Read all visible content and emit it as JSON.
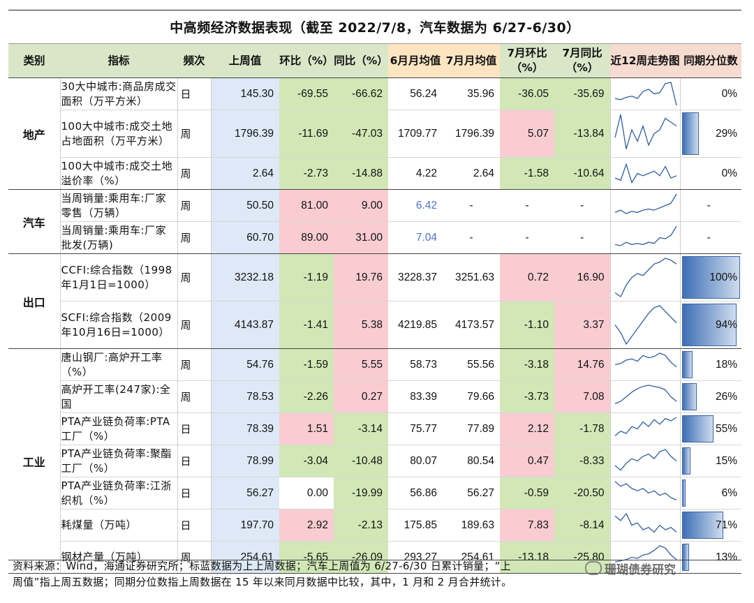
{
  "title": "中高频经济数据表现（截至 2022/7/8，汽车数据为 6/27-6/30）",
  "headers": {
    "category": "类别",
    "indicator": "指标",
    "frequency": "频次",
    "last_week": "上周值",
    "hoh": "环比（%）",
    "yoy": "同比（%）",
    "june_avg": "6月月均值",
    "july_avg": "7月月均值",
    "july_mom": "7月环比（%）",
    "july_yoy": "7月同比（%）",
    "trend": "近12周走势图",
    "percentile": "同期分位数"
  },
  "rows": [
    {
      "cat": "地产",
      "name": "30大中城市:商品房成交面积（万平方米）",
      "freq": "日",
      "last": "145.30",
      "hoh": "-69.55",
      "yoy": "-66.62",
      "june": "56.24",
      "july": "35.96",
      "mom": "-36.05",
      "jyoy": "-35.69",
      "pct": "0%",
      "pct_value": 0,
      "trend": [
        0.3,
        0.25,
        0.35,
        0.4,
        0.3,
        0.6,
        0.7,
        0.5,
        0.55,
        0.95,
        1.0,
        0.0
      ],
      "bg": {
        "hoh": "g",
        "yoy": "g",
        "mom": "g",
        "jyoy": "g"
      }
    },
    {
      "cat": "",
      "name": "100大中城市:成交土地占地面积（万平方米）",
      "freq": "周",
      "last": "1796.39",
      "hoh": "-11.69",
      "yoy": "-47.03",
      "june": "1709.77",
      "july": "1796.39",
      "mom": "5.07",
      "jyoy": "-13.84",
      "pct": "29%",
      "pct_value": 0.29,
      "trend": [
        0.4,
        1.0,
        0.1,
        0.6,
        0.3,
        0.7,
        0.2,
        0.5,
        0.6,
        0.9,
        0.8,
        0.7
      ],
      "bg": {
        "hoh": "g",
        "yoy": "g",
        "mom": "r",
        "jyoy": "g"
      }
    },
    {
      "cat": "",
      "name": "100大中城市:成交土地溢价率（%）",
      "freq": "周",
      "last": "2.64",
      "hoh": "-2.73",
      "yoy": "-14.88",
      "june": "4.22",
      "july": "2.64",
      "mom": "-1.58",
      "jyoy": "-10.64",
      "pct": "0%",
      "pct_value": 0,
      "trend": [
        0.3,
        0.2,
        0.9,
        0.1,
        0.5,
        0.4,
        0.5,
        0.6,
        0.4,
        0.8,
        0.3,
        0.4
      ],
      "bg": {
        "hoh": "g",
        "yoy": "g",
        "mom": "g",
        "jyoy": "g"
      }
    },
    {
      "cat": "汽车",
      "name": "当周销量:乘用车:厂家零售（万辆）",
      "freq": "周",
      "last": "50.50",
      "hoh": "81.00",
      "yoy": "9.00",
      "june": "6.42",
      "july": "-",
      "mom": "-",
      "jyoy": "-",
      "pct": "-",
      "pct_value": null,
      "trend": [
        0.2,
        0.3,
        0.15,
        0.25,
        0.2,
        0.3,
        0.35,
        0.3,
        0.4,
        0.5,
        0.6,
        1.0
      ],
      "june_blue": true,
      "bg": {
        "hoh": "r",
        "yoy": "r",
        "mom": "w",
        "jyoy": "w"
      }
    },
    {
      "cat": "",
      "name": "当周销量:乘用车:厂家批发(万辆)",
      "freq": "周",
      "last": "60.70",
      "hoh": "89.00",
      "yoy": "31.00",
      "june": "7.04",
      "july": "-",
      "mom": "-",
      "jyoy": "-",
      "pct": "-",
      "pct_value": null,
      "trend": [
        0.2,
        0.15,
        0.3,
        0.2,
        0.25,
        0.2,
        0.3,
        0.25,
        0.5,
        0.45,
        0.6,
        1.0
      ],
      "june_blue": true,
      "bg": {
        "hoh": "r",
        "yoy": "r",
        "mom": "w",
        "jyoy": "w"
      }
    },
    {
      "cat": "出口",
      "name": "CCFI:综合指数（1998年1月1日=1000）",
      "freq": "周",
      "last": "3232.18",
      "hoh": "-1.19",
      "yoy": "19.76",
      "june": "3228.37",
      "july": "3251.63",
      "mom": "0.72",
      "jyoy": "16.90",
      "pct": "100%",
      "pct_value": 1.0,
      "trend": [
        0.1,
        0.0,
        0.3,
        0.5,
        0.6,
        0.55,
        0.7,
        0.85,
        0.9,
        1.0,
        0.95,
        0.85
      ],
      "bg": {
        "hoh": "g",
        "yoy": "r",
        "mom": "r",
        "jyoy": "r"
      }
    },
    {
      "cat": "",
      "name": "SCFI:综合指数（2009年10月16日=1000）",
      "freq": "周",
      "last": "4143.87",
      "hoh": "-1.41",
      "yoy": "5.38",
      "june": "4219.85",
      "july": "4173.57",
      "mom": "-1.10",
      "jyoy": "3.37",
      "pct": "94%",
      "pct_value": 0.94,
      "trend": [
        0.5,
        0.3,
        0.0,
        0.2,
        0.4,
        0.6,
        0.8,
        0.95,
        1.0,
        0.85,
        0.7,
        0.55
      ],
      "bg": {
        "hoh": "g",
        "yoy": "r",
        "mom": "g",
        "jyoy": "r"
      }
    },
    {
      "cat": "工业",
      "name": "唐山钢厂:高炉开工率（%）",
      "freq": "周",
      "last": "54.76",
      "hoh": "-1.59",
      "yoy": "5.55",
      "june": "58.73",
      "july": "55.56",
      "mom": "-3.18",
      "jyoy": "14.76",
      "pct": "18%",
      "pct_value": 0.18,
      "trend": [
        0.5,
        0.55,
        0.7,
        0.75,
        0.65,
        0.9,
        0.8,
        0.85,
        1.0,
        0.9,
        0.6,
        0.4
      ],
      "bg": {
        "hoh": "g",
        "yoy": "r",
        "mom": "g",
        "jyoy": "r"
      }
    },
    {
      "cat": "",
      "name": "高炉开工率(247家):全国",
      "freq": "周",
      "last": "78.53",
      "hoh": "-2.26",
      "yoy": "0.27",
      "june": "83.39",
      "july": "79.66",
      "mom": "-3.73",
      "jyoy": "7.08",
      "pct": "26%",
      "pct_value": 0.26,
      "trend": [
        0.2,
        0.3,
        0.5,
        0.7,
        0.85,
        0.95,
        1.0,
        0.95,
        0.9,
        0.8,
        0.5,
        0.3
      ],
      "bg": {
        "hoh": "g",
        "yoy": "r",
        "mom": "g",
        "jyoy": "r"
      }
    },
    {
      "cat": "",
      "name": "PTA产业链负荷率:PTA工厂（%）",
      "freq": "日",
      "last": "78.39",
      "hoh": "1.51",
      "yoy": "-3.14",
      "june": "75.77",
      "july": "77.89",
      "mom": "2.12",
      "jyoy": "-1.78",
      "pct": "55%",
      "pct_value": 0.55,
      "trend": [
        0.2,
        0.4,
        0.3,
        0.6,
        0.5,
        0.8,
        0.6,
        0.9,
        0.7,
        0.95,
        0.85,
        1.0
      ],
      "bg": {
        "hoh": "r",
        "yoy": "g",
        "mom": "r",
        "jyoy": "g"
      }
    },
    {
      "cat": "",
      "name": "PTA产业链负荷率:聚酯工厂（%）",
      "freq": "日",
      "last": "78.99",
      "hoh": "-3.04",
      "yoy": "-10.48",
      "june": "80.07",
      "july": "80.54",
      "mom": "0.47",
      "jyoy": "-8.33",
      "pct": "15%",
      "pct_value": 0.15,
      "trend": [
        0.3,
        0.1,
        0.4,
        0.6,
        0.5,
        0.7,
        0.8,
        0.6,
        0.9,
        1.0,
        0.7,
        0.5
      ],
      "bg": {
        "hoh": "g",
        "yoy": "g",
        "mom": "r",
        "jyoy": "g"
      }
    },
    {
      "cat": "",
      "name": "PTA产业链负荷率:江浙织机（%）",
      "freq": "日",
      "last": "56.27",
      "hoh": "0.00",
      "yoy": "-19.99",
      "june": "56.86",
      "july": "56.27",
      "mom": "-0.59",
      "jyoy": "-20.50",
      "pct": "6%",
      "pct_value": 0.06,
      "trend": [
        1.0,
        0.8,
        0.9,
        0.7,
        0.6,
        0.7,
        0.5,
        0.6,
        0.4,
        0.5,
        0.3,
        0.2
      ],
      "bg": {
        "hoh": "w",
        "yoy": "g",
        "mom": "g",
        "jyoy": "g"
      }
    },
    {
      "cat": "",
      "name": "耗煤量（万吨）",
      "freq": "日",
      "last": "197.70",
      "hoh": "2.92",
      "yoy": "-2.13",
      "june": "175.85",
      "july": "189.63",
      "mom": "7.83",
      "jyoy": "-8.14",
      "pct": "71%",
      "pct_value": 0.71,
      "trend": [
        0.9,
        0.7,
        1.0,
        0.5,
        0.6,
        0.3,
        0.4,
        0.2,
        0.5,
        0.3,
        0.4,
        0.2
      ],
      "bg": {
        "hoh": "r",
        "yoy": "g",
        "mom": "r",
        "jyoy": "g"
      }
    },
    {
      "cat": "",
      "name": "钢材产量（万吨）",
      "freq": "周",
      "last": "254.61",
      "hoh": "-5.65",
      "yoy": "-26.09",
      "june": "293.27",
      "july": "254.61",
      "mom": "-13.18",
      "jyoy": "-25.80",
      "pct": "13%",
      "pct_value": 0.13,
      "trend": [
        0.3,
        0.35,
        0.4,
        0.5,
        0.45,
        0.6,
        0.65,
        0.8,
        1.0,
        0.9,
        0.6,
        0.4
      ],
      "bg": {
        "hoh": "g",
        "yoy": "g",
        "mom": "g",
        "jyoy": "g"
      }
    }
  ],
  "footnote_line1": "资料来源：Wind，海通证券研究所；标蓝数据为上上周数据；汽车上周值为 6/27-6/30 日累计销量；“上",
  "footnote_line2": "周值”指上周五数据；同期分位数指上周数据在 15 年以来同月数据中比较，其中，1 月和 2 月合并统计。",
  "watermark": "珊瑚债券研究"
}
